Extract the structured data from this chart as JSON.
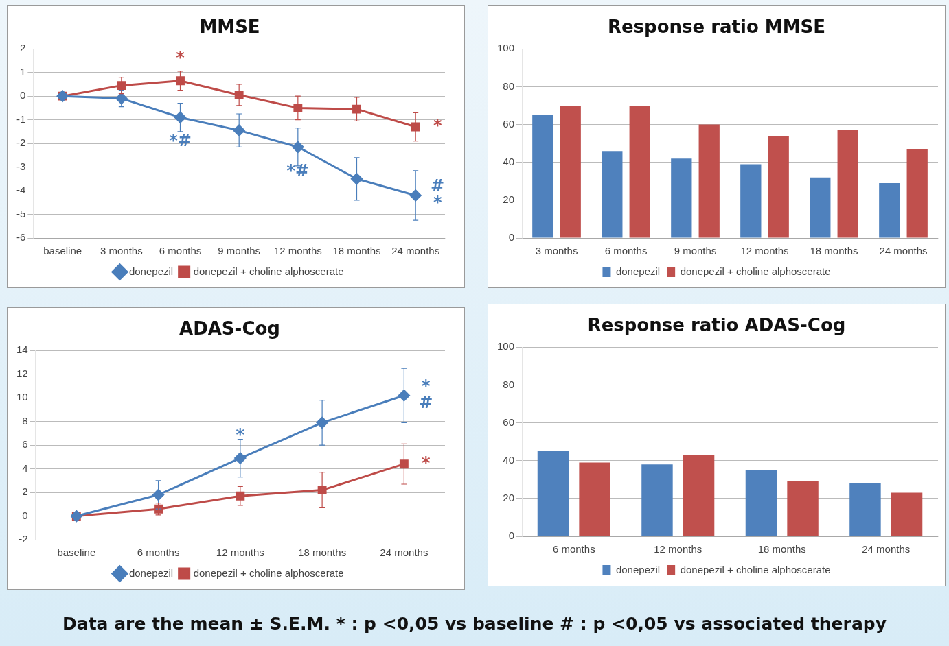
{
  "chart_data": [
    {
      "type": "line",
      "title": "MMSE",
      "categories": [
        "baseline",
        "3 months",
        "6 months",
        "9 months",
        "12 months",
        "18 months",
        "24 months"
      ],
      "series": [
        {
          "name": "donepezil",
          "color": "#4a7ebb",
          "marker": "diamond",
          "values": [
            0,
            -0.1,
            -0.9,
            -1.45,
            -2.15,
            -3.5,
            -4.2
          ],
          "errors": [
            null,
            0.35,
            0.6,
            0.7,
            0.8,
            0.9,
            1.05
          ]
        },
        {
          "name": "donepezil + choline alphoscerate",
          "color": "#be4b48",
          "marker": "square",
          "values": [
            0,
            0.45,
            0.65,
            0.05,
            -0.5,
            -0.55,
            -1.3
          ],
          "errors": [
            null,
            0.35,
            0.4,
            0.45,
            0.5,
            0.5,
            0.6
          ]
        }
      ],
      "ylim": [
        -6,
        2
      ],
      "yticks": [
        -6,
        -5,
        -4,
        -3,
        -2,
        -1,
        0,
        1,
        2
      ],
      "grid": "y",
      "legend": "bottom",
      "annotations": [
        {
          "text": "*",
          "x": "6 months",
          "y": 0.65
        },
        {
          "text": "*#",
          "x": "6 months",
          "y": -0.9
        },
        {
          "text": "*#",
          "x": "12 months",
          "y": -2.15
        },
        {
          "text": "#",
          "x": "24 months",
          "y": -4.2
        },
        {
          "text": "*",
          "x": "24 months",
          "y": -4.2
        },
        {
          "text": "*",
          "x": "24 months",
          "y": -1.3
        }
      ]
    },
    {
      "type": "bar",
      "title": "Response ratio MMSE",
      "categories": [
        "3 months",
        "6 months",
        "9 months",
        "12 months",
        "18 months",
        "24 months"
      ],
      "series": [
        {
          "name": "donepezil",
          "color": "#4f81bd",
          "values": [
            65,
            46,
            42,
            39,
            32,
            29
          ]
        },
        {
          "name": "donepezil + choline alphoscerate",
          "color": "#c0504d",
          "values": [
            70,
            70,
            60,
            54,
            57,
            47
          ]
        }
      ],
      "ylim": [
        0,
        100
      ],
      "yticks": [
        0,
        20,
        40,
        60,
        80,
        100
      ],
      "grid": "y",
      "legend": "bottom"
    },
    {
      "type": "line",
      "title": "ADAS-Cog",
      "categories": [
        "baseline",
        "6 months",
        "12 months",
        "18 months",
        "24 months"
      ],
      "series": [
        {
          "name": "donepezil",
          "color": "#4a7ebb",
          "marker": "diamond",
          "values": [
            0,
            1.8,
            4.9,
            7.9,
            10.2
          ],
          "errors": [
            null,
            1.2,
            1.6,
            1.9,
            2.3
          ]
        },
        {
          "name": "donepezil + choline alphoscerate",
          "color": "#be4b48",
          "marker": "square",
          "values": [
            0,
            0.6,
            1.7,
            2.2,
            4.4
          ],
          "errors": [
            null,
            0.5,
            0.8,
            1.5,
            1.7
          ]
        }
      ],
      "ylim": [
        -2,
        14
      ],
      "yticks": [
        -2,
        0,
        2,
        4,
        6,
        8,
        10,
        12,
        14
      ],
      "grid": "y",
      "legend": "bottom",
      "annotations": [
        {
          "text": "*",
          "x": "12 months",
          "y": 4.9
        },
        {
          "text": "*",
          "x": "24 months",
          "y": 10.2
        },
        {
          "text": "#",
          "x": "24 months",
          "y": 10.2
        },
        {
          "text": "*",
          "x": "24 months",
          "y": 4.4
        }
      ]
    },
    {
      "type": "bar",
      "title": "Response ratio ADAS-Cog",
      "categories": [
        "6 months",
        "12 months",
        "18 months",
        "24 months"
      ],
      "series": [
        {
          "name": "donepezil",
          "color": "#4f81bd",
          "values": [
            45,
            38,
            35,
            28
          ]
        },
        {
          "name": "donepezil + choline alphoscerate",
          "color": "#c0504d",
          "values": [
            39,
            43,
            29,
            23
          ]
        }
      ],
      "ylim": [
        0,
        100
      ],
      "yticks": [
        0,
        20,
        40,
        60,
        80,
        100
      ],
      "grid": "y",
      "legend": "bottom",
      "annotations": [
        "Data are the mean ± S.E.M.  * : p <0,05 vs baseline    # : p <0,05 vs associated therapy"
      ]
    }
  ]
}
